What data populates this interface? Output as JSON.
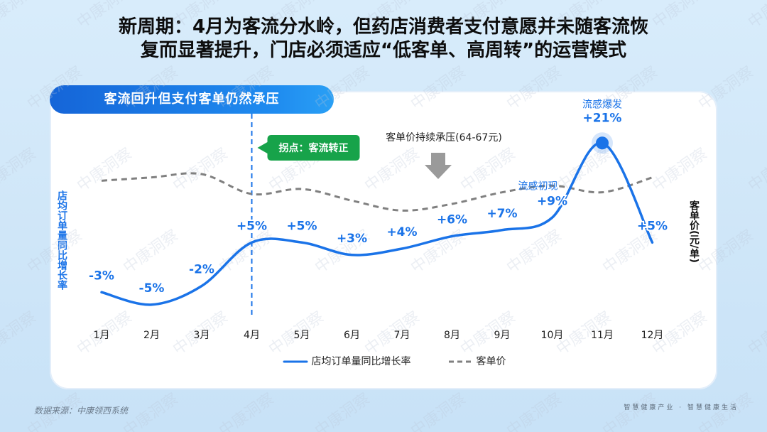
{
  "headline": {
    "line1": "新周期：4月为客流分水岭，但药店消费者支付意愿并未随客流恢",
    "line2": "复而显著提升，门店必须适应“低客单、高周转”的运营模式"
  },
  "panel_title": "客流回升但支付客单仍然承压",
  "chart_data": {
    "type": "line",
    "categories": [
      "1月",
      "2月",
      "3月",
      "4月",
      "5月",
      "6月",
      "7月",
      "8月",
      "9月",
      "10月",
      "11月",
      "12月"
    ],
    "series": [
      {
        "name": "店均订单量同比增长率",
        "values": [
          -3,
          -5,
          -2,
          5,
          5,
          3,
          4,
          6,
          7,
          9,
          21,
          5
        ],
        "unit": "%",
        "axis": "left",
        "style": "solid",
        "color": "#1a73e8"
      },
      {
        "name": "客单价",
        "values": [
          66.6,
          66.8,
          67.0,
          65.8,
          66.1,
          65.4,
          64.8,
          65.2,
          65.9,
          66.3,
          65.9,
          66.8
        ],
        "unit": "元/单",
        "axis": "right",
        "style": "dashed",
        "color": "#808080"
      }
    ],
    "data_labels": [
      "-3%",
      "-5%",
      "-2%",
      "+5%",
      "+5%",
      "+3%",
      "+4%",
      "+6%",
      "+7%",
      "+9%",
      "+21%",
      "+5%"
    ],
    "ylabel_left": "店均订单量同比增长率",
    "ylabel_right": "客单价(元/单)",
    "ylim_left": [
      -8,
      24
    ],
    "ylim_right": [
      58,
      70
    ],
    "grid": false,
    "legend_position": "bottom",
    "annotations": {
      "turning_point": "拐点：客流转正",
      "turning_point_month": "4月",
      "price_pressure": "客单价持续承压(64-67元)",
      "flu_start": "流感初现",
      "flu_peak": "流感爆发"
    }
  },
  "footer": {
    "source": "数据来源：中康领西系统",
    "slogan": "智慧健康产业 · 智慧健康生活"
  },
  "watermark": "中康洞察",
  "colors": {
    "primary": "#1a73e8",
    "dashed": "#808080",
    "highlight_green": "#17a34a",
    "background": "#d3e8f9"
  }
}
